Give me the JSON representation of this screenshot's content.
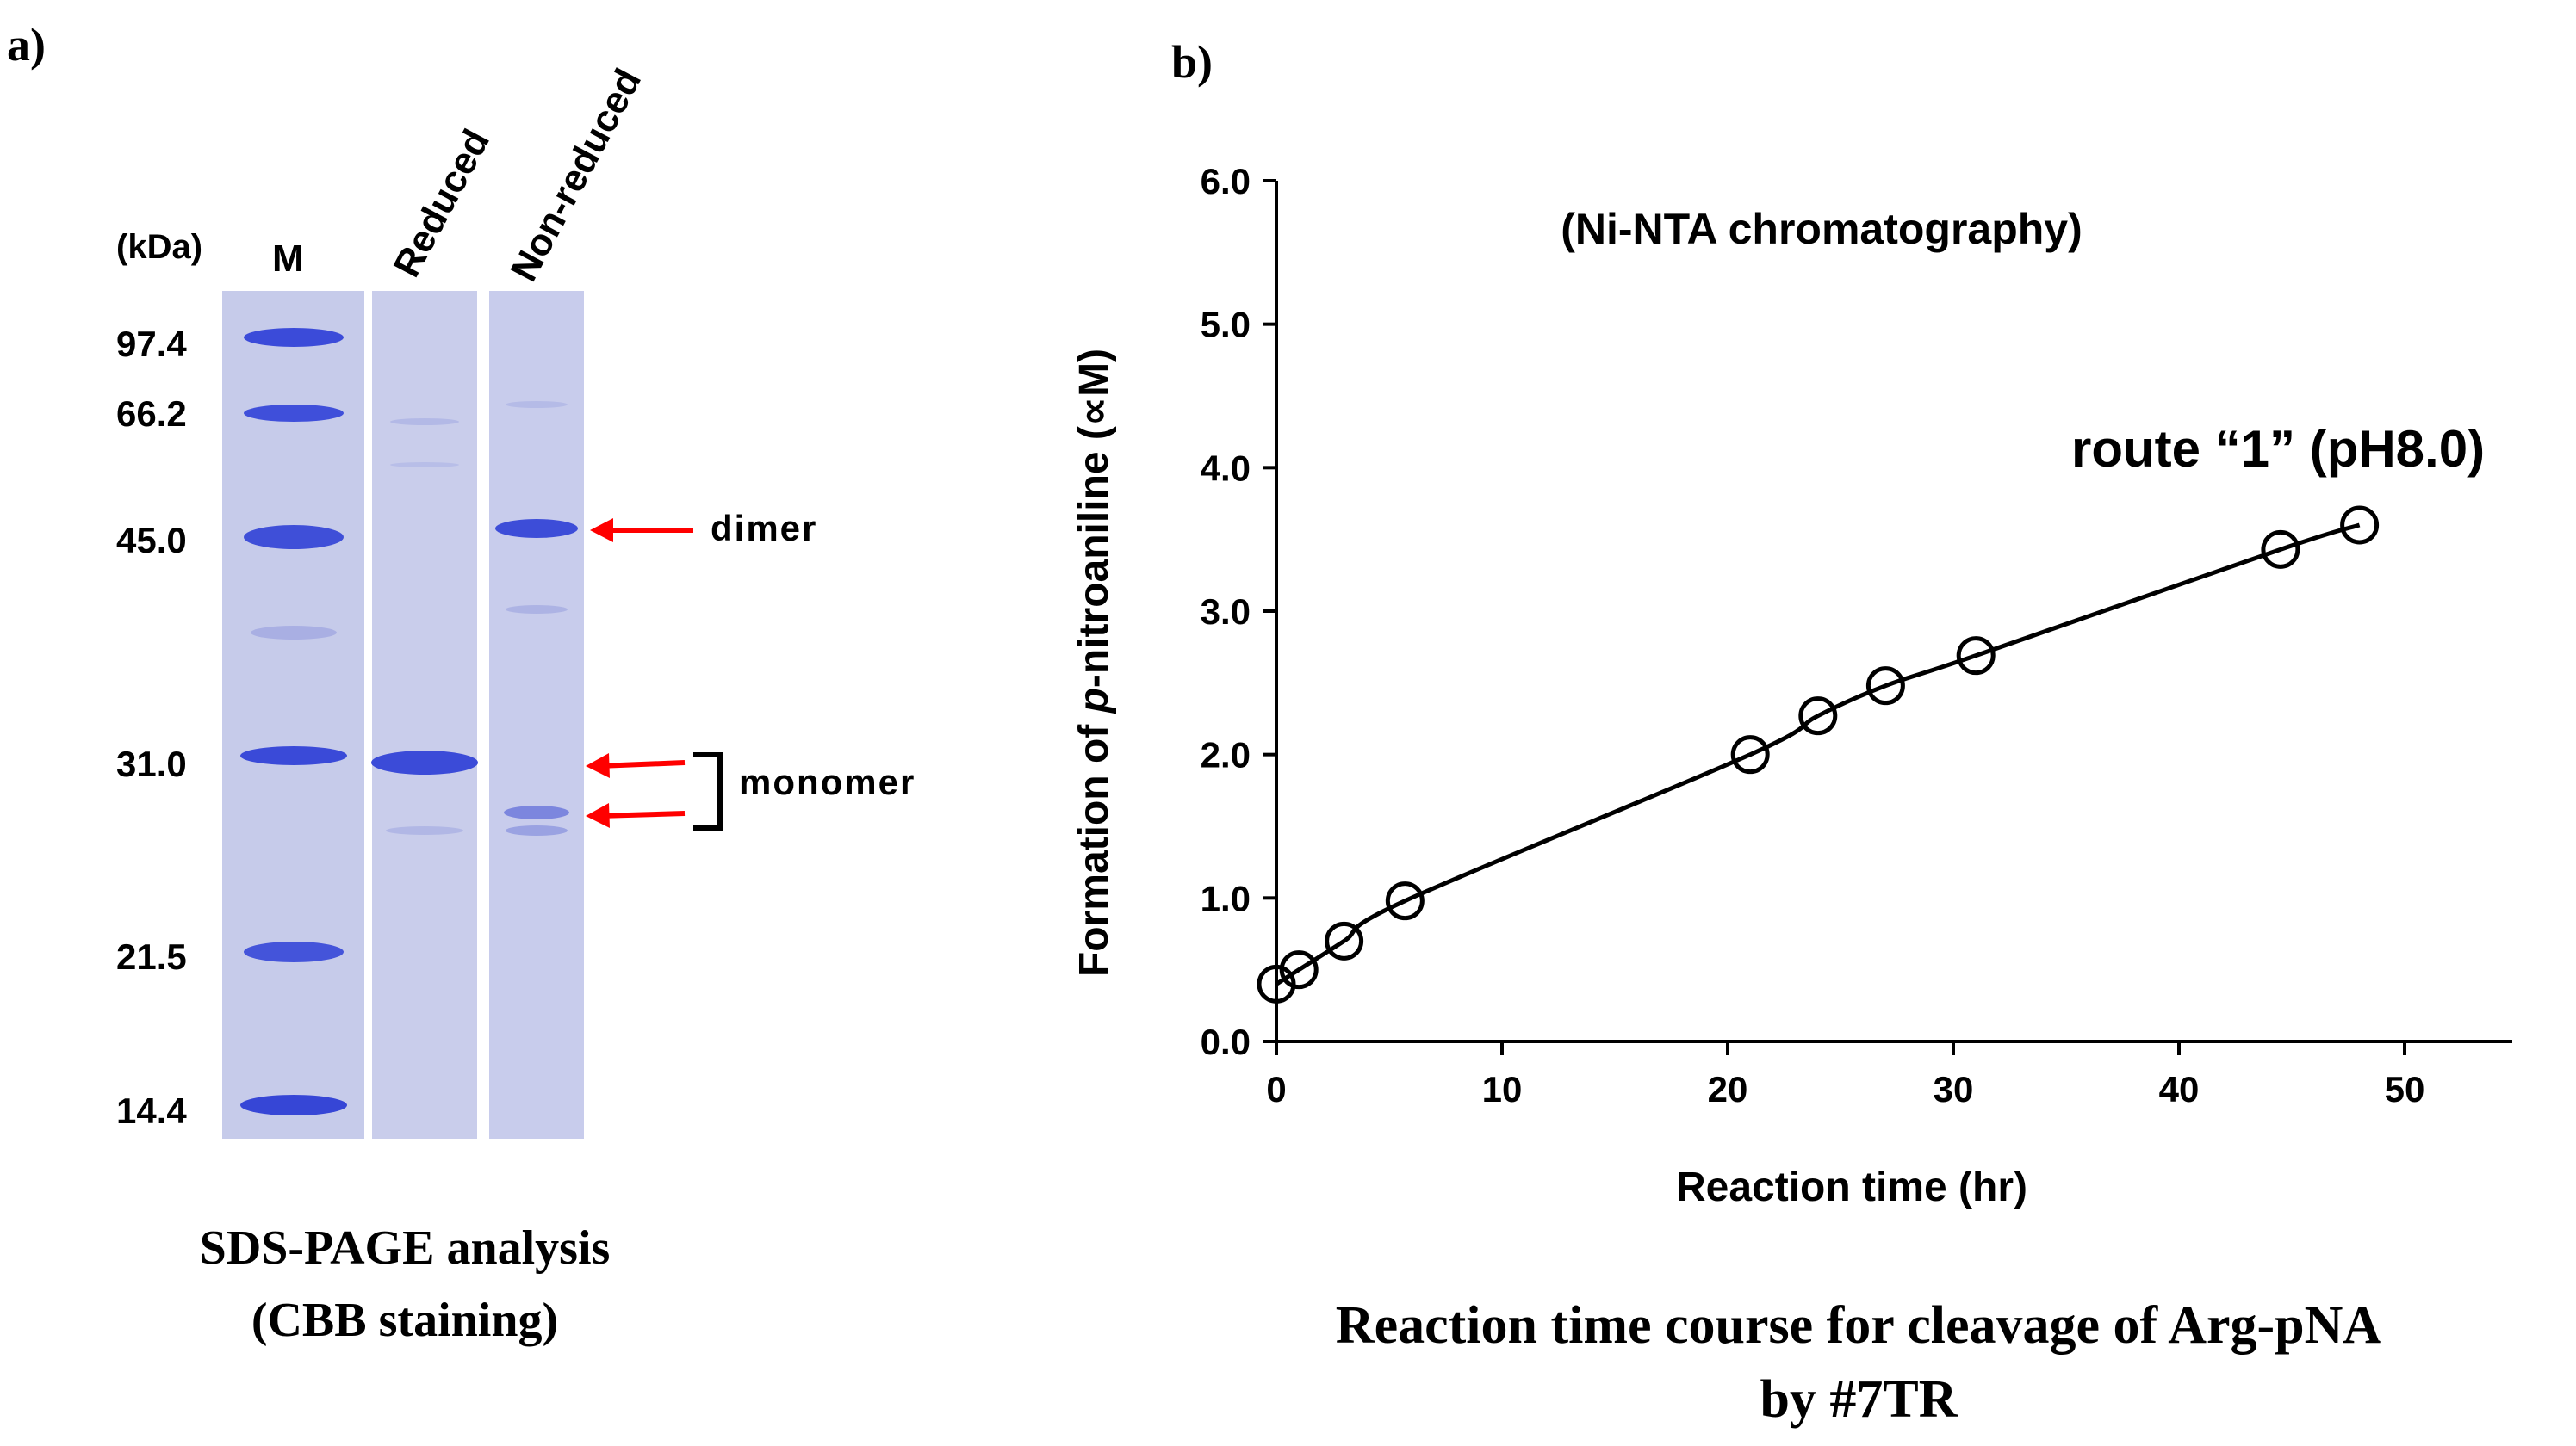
{
  "panel_a": {
    "label": "a)",
    "unit_label": "(kDa)",
    "marker_lane_label": "M",
    "lane_labels": [
      "Reduced",
      "Non-reduced"
    ],
    "marker_sizes": [
      "97.4",
      "66.2",
      "45.0",
      "31.0",
      "21.5",
      "14.4"
    ],
    "annotations": {
      "dimer": "dimer",
      "monomer": "monomer"
    },
    "caption_line1": "SDS-PAGE analysis",
    "caption_line2": "(CBB staining)",
    "colors": {
      "gel": "#c9cdeb",
      "band": "#3f4fd8",
      "arrow": "#ff0000"
    }
  },
  "panel_b": {
    "label": "b)",
    "caption_line1": "Reaction time course for cleavage of Arg-pNA",
    "caption_line2": "by #7TR"
  },
  "chart_data": {
    "type": "scatter",
    "title": "(Ni-NTA chromatography)",
    "xlabel": "Reaction time (hr)",
    "ylabel_prefix": "Formation of ",
    "ylabel_italic": "p",
    "ylabel_suffix": "-nitroaniline (∝M)",
    "xlim": [
      0,
      55
    ],
    "ylim": [
      0,
      6
    ],
    "xticks": [
      0,
      10,
      20,
      30,
      40,
      50
    ],
    "yticks": [
      "0.0",
      "1.0",
      "2.0",
      "3.0",
      "4.0",
      "5.0",
      "6.0"
    ],
    "series": [
      {
        "name": "route “1” (pH8.0)",
        "x": [
          0,
          1,
          3,
          5.7,
          21,
          24,
          27,
          31,
          44.5,
          48
        ],
        "y": [
          0.4,
          0.5,
          0.7,
          0.98,
          2.0,
          2.27,
          2.48,
          2.69,
          3.43,
          3.6
        ],
        "marker": "open-circle",
        "fit": "smooth-curve"
      }
    ],
    "grid": false
  }
}
